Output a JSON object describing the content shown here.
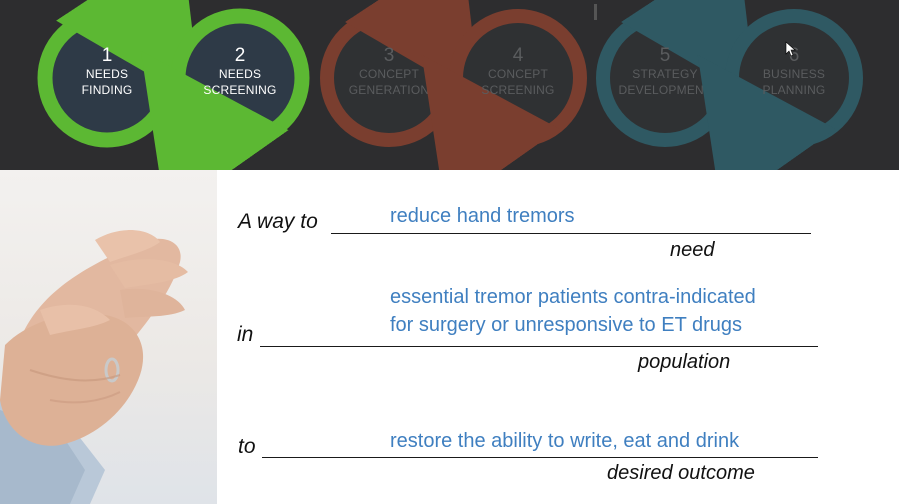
{
  "stages": [
    {
      "num": "1",
      "line1": "NEEDS",
      "line2": "FINDING",
      "state": "active"
    },
    {
      "num": "2",
      "line1": "NEEDS",
      "line2": "SCREENING",
      "state": "active"
    },
    {
      "num": "3",
      "line1": "CONCEPT",
      "line2": "GENERATION",
      "state": "inactive"
    },
    {
      "num": "4",
      "line1": "CONCEPT",
      "line2": "SCREENING",
      "state": "inactive"
    },
    {
      "num": "5",
      "line1": "STRATEGY",
      "line2": "DEVELOPMENT",
      "state": "inactive"
    },
    {
      "num": "6",
      "line1": "BUSINESS",
      "line2": "PLANNING",
      "state": "inactive"
    }
  ],
  "colors": {
    "banner_bg": "#2d2d2f",
    "active_ring": "#5cb833",
    "ring_34": "#7a3e2f",
    "ring_56": "#2f5963",
    "circle_fill": "#2e3a47",
    "answer_text": "#3f7fc0"
  },
  "statement": {
    "need": {
      "lead": "A way to",
      "value": "reduce hand tremors",
      "caption": "need"
    },
    "population": {
      "lead": "in",
      "value_line1": "essential tremor patients contra-indicated",
      "value_line2": "for surgery or unresponsive to ET drugs",
      "caption": "population"
    },
    "outcome": {
      "lead": "to",
      "value": "restore the ability to write, eat and drink",
      "caption": "desired outcome"
    }
  }
}
